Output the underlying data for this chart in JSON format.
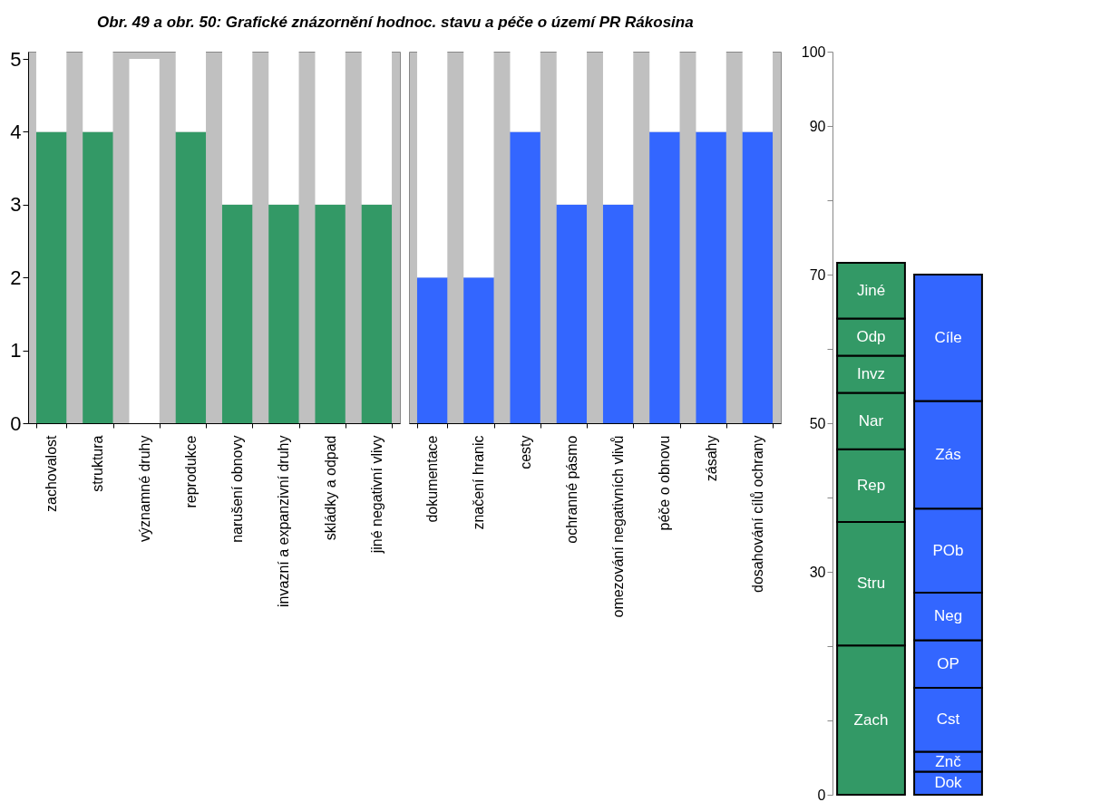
{
  "chart_data": [
    {
      "type": "bar",
      "title": "Obr. 49 a obr. 50: Grafické znázornění hodnoc. stavu a péče o území PR Rákosina",
      "stacked": true,
      "grid": false,
      "categories": [
        "zachovalost",
        "struktura",
        "významné druhy",
        "reprodukce",
        "narušení obnovy",
        "invazní a expanzivní druhy",
        "skládky a odpad",
        "jiné negativní vlivy"
      ],
      "series": [
        {
          "color": "#339966",
          "values": [
            4,
            4,
            0,
            4,
            3,
            3,
            3,
            3
          ]
        },
        {
          "color": "#ffffff",
          "values": [
            1.1,
            1.1,
            5.0,
            1.1,
            2.1,
            2.1,
            2.1,
            2.1
          ]
        }
      ],
      "ylim": [
        0,
        5.1
      ],
      "yticks": [
        0,
        1,
        2,
        3,
        4,
        5
      ]
    },
    {
      "type": "bar",
      "stacked": true,
      "grid": false,
      "tick_labels": "x",
      "categories": [
        "dokumentace",
        "značení hranic",
        "cesty",
        "ochranné pásmo",
        "omezování negativních vlivů",
        "péče o obnovu",
        "zásahy",
        "dosahování cílů ochrany"
      ],
      "series": [
        {
          "color": "#3366ff",
          "values": [
            2,
            2,
            4,
            3,
            3,
            4,
            4,
            4
          ]
        },
        {
          "color": "#ffffff",
          "values": [
            3.1,
            3.1,
            1.1,
            2.1,
            2.1,
            1.1,
            1.1,
            1.1
          ]
        }
      ],
      "ylim": [
        0,
        5.1
      ],
      "yticks": [
        0,
        1,
        2,
        3,
        4,
        5
      ]
    },
    {
      "type": "bar",
      "stacked": true,
      "grid": false,
      "tick_labels": "y",
      "categories": [
        null,
        null
      ],
      "series": [
        {
          "name": "Zach",
          "color": "#339966",
          "values": [
            20.1,
            null
          ]
        },
        {
          "name": "Stru",
          "color": "#339966",
          "values": [
            16.6,
            null
          ]
        },
        {
          "name": "Rep",
          "color": "#339966",
          "values": [
            9.8,
            null
          ]
        },
        {
          "name": "Nar",
          "color": "#339966",
          "values": [
            7.6,
            null
          ]
        },
        {
          "name": "Invz",
          "color": "#339966",
          "values": [
            5.0,
            null
          ]
        },
        {
          "name": "Odp",
          "color": "#339966",
          "values": [
            5.0,
            null
          ]
        },
        {
          "name": "Jiné",
          "color": "#339966",
          "values": [
            7.5,
            null
          ]
        },
        {
          "name": "Dok",
          "color": "#3366ff",
          "values": [
            null,
            3.1
          ]
        },
        {
          "name": "Znč",
          "color": "#3366ff",
          "values": [
            null,
            2.7
          ]
        },
        {
          "name": "Cst",
          "color": "#3366ff",
          "values": [
            null,
            8.6
          ]
        },
        {
          "name": "OP",
          "color": "#3366ff",
          "values": [
            null,
            6.4
          ]
        },
        {
          "name": "Neg",
          "color": "#3366ff",
          "values": [
            null,
            6.4
          ]
        },
        {
          "name": "POb",
          "color": "#3366ff",
          "values": [
            null,
            11.3
          ]
        },
        {
          "name": "Zás",
          "color": "#3366ff",
          "values": [
            null,
            14.5
          ]
        },
        {
          "name": "Cíle",
          "color": "#3366ff",
          "values": [
            null,
            17.0
          ]
        }
      ],
      "ylim": [
        0,
        100
      ],
      "yticks": [
        100,
        90,
        {
          "value": 80,
          "label": null
        },
        70,
        {
          "value": 60,
          "label": null
        },
        50,
        {
          "value": 40,
          "label": null
        },
        30,
        {
          "value": 20,
          "label": null
        },
        {
          "value": 10,
          "label": null
        },
        0
      ]
    }
  ]
}
